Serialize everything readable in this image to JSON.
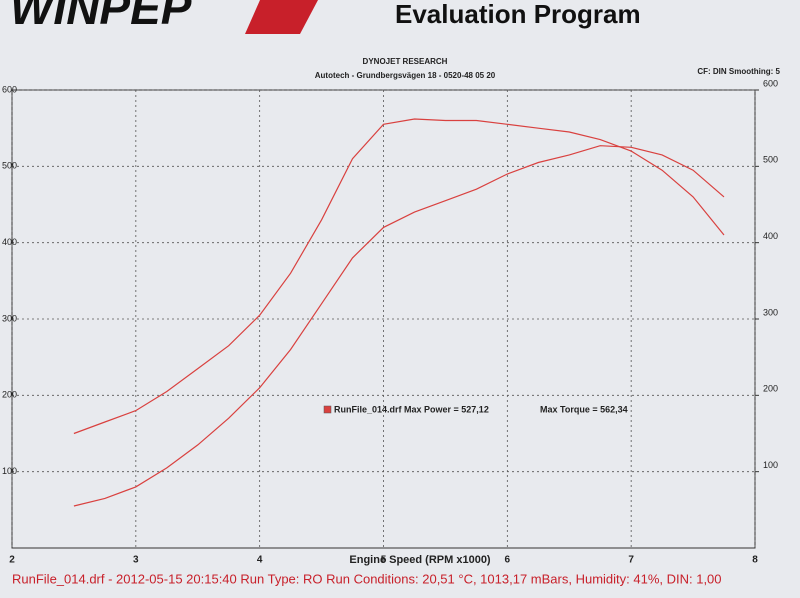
{
  "chart_data": {
    "type": "line",
    "logo": "WINPEP",
    "program_title": "Evaluation Program",
    "title": "DYNOJET RESEARCH",
    "subtitle": "Autotech - Grundbergsvägen 18 - 0520-48 05 20",
    "settings": "CF: DIN  Smoothing: 5",
    "xlabel": "Engine Speed (RPM x1000)",
    "legend": [
      "RunFile_014.drf Max Power = 527,12",
      "Max Torque = 562,34"
    ],
    "footer": "RunFile_014.drf - 2012-05-15 20:15:40  Run Type: RO  Run Conditions: 20,51 °C, 1013,17 mBars,  Humidity: 41%, DIN: 1,00",
    "x": [
      2.5,
      2.75,
      3.0,
      3.25,
      3.5,
      3.75,
      4.0,
      4.25,
      4.5,
      4.75,
      5.0,
      5.25,
      5.5,
      5.75,
      6.0,
      6.25,
      6.5,
      6.75,
      7.0,
      7.25,
      7.5,
      7.75
    ],
    "series": [
      {
        "color": "#d9413f",
        "values": [
          150,
          165,
          180,
          205,
          235,
          265,
          305,
          360,
          430,
          510,
          555,
          562,
          560,
          560,
          555,
          550,
          545,
          535,
          520,
          495,
          460,
          410
        ]
      },
      {
        "color": "#d9413f",
        "values": [
          55,
          65,
          80,
          105,
          135,
          170,
          210,
          260,
          320,
          380,
          420,
          440,
          455,
          470,
          490,
          505,
          515,
          527,
          525,
          515,
          495,
          460
        ]
      }
    ],
    "xlim": [
      2,
      8
    ],
    "xticks": [
      2,
      3,
      4,
      5,
      6,
      7,
      8
    ],
    "ylim": [
      0,
      600
    ],
    "yticks": [
      100,
      200,
      300,
      400,
      500,
      600
    ],
    "y2lim": [
      0,
      600
    ],
    "y2ticks": [
      100,
      200,
      300,
      400,
      500,
      600
    ],
    "grid": true
  }
}
